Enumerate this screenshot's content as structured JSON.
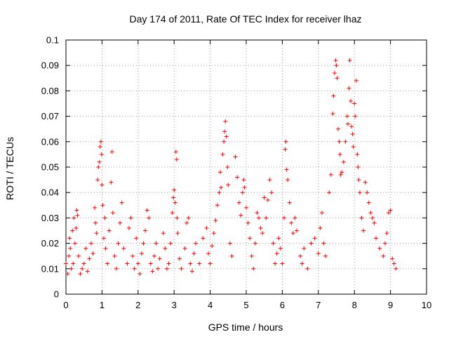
{
  "chart_data": {
    "type": "scatter",
    "title": "Day 174 of 2011, Rate Of TEC Index for receiver lhaz",
    "xlabel": "GPS time / hours",
    "ylabel": "ROTI / TECUs",
    "xlim": [
      0,
      10
    ],
    "ylim": [
      0,
      0.1
    ],
    "xticks": [
      0,
      1,
      2,
      3,
      4,
      5,
      6,
      7,
      8,
      9,
      10
    ],
    "xtick_labels": [
      "0",
      "1",
      "2",
      "3",
      "4",
      "5",
      "6",
      "7",
      "8",
      "9",
      "10"
    ],
    "yticks": [
      0,
      0.01,
      0.02,
      0.03,
      0.04,
      0.05,
      0.06,
      0.07,
      0.08,
      0.09,
      0.1
    ],
    "ytick_labels": [
      "0",
      "0.01",
      "0.02",
      "0.03",
      "0.04",
      "0.05",
      "0.06",
      "0.07",
      "0.08",
      "0.09",
      "0.1"
    ],
    "grid": true,
    "marker": "+",
    "color": "#ff0000",
    "series": [
      {
        "name": "ROTI",
        "points": [
          [
            0.0,
            0.012
          ],
          [
            0.05,
            0.008
          ],
          [
            0.08,
            0.015
          ],
          [
            0.1,
            0.022
          ],
          [
            0.12,
            0.018
          ],
          [
            0.15,
            0.01
          ],
          [
            0.18,
            0.025
          ],
          [
            0.2,
            0.012
          ],
          [
            0.22,
            0.03
          ],
          [
            0.25,
            0.02
          ],
          [
            0.28,
            0.026
          ],
          [
            0.3,
            0.033
          ],
          [
            0.32,
            0.031
          ],
          [
            0.35,
            0.015
          ],
          [
            0.4,
            0.008
          ],
          [
            0.45,
            0.01
          ],
          [
            0.5,
            0.012
          ],
          [
            0.55,
            0.018
          ],
          [
            0.6,
            0.009
          ],
          [
            0.65,
            0.014
          ],
          [
            0.7,
            0.02
          ],
          [
            0.75,
            0.016
          ],
          [
            0.8,
            0.034
          ],
          [
            0.82,
            0.028
          ],
          [
            0.85,
            0.024
          ],
          [
            0.88,
            0.045
          ],
          [
            0.9,
            0.05
          ],
          [
            0.93,
            0.052
          ],
          [
            0.95,
            0.058
          ],
          [
            0.97,
            0.06
          ],
          [
            0.99,
            0.055
          ],
          [
            1.0,
            0.043
          ],
          [
            1.02,
            0.035
          ],
          [
            1.05,
            0.022
          ],
          [
            1.08,
            0.03
          ],
          [
            1.1,
            0.018
          ],
          [
            1.15,
            0.012
          ],
          [
            1.2,
            0.025
          ],
          [
            1.25,
            0.044
          ],
          [
            1.28,
            0.056
          ],
          [
            1.3,
            0.032
          ],
          [
            1.35,
            0.015
          ],
          [
            1.4,
            0.01
          ],
          [
            1.45,
            0.02
          ],
          [
            1.5,
            0.028
          ],
          [
            1.55,
            0.036
          ],
          [
            1.6,
            0.018
          ],
          [
            1.7,
            0.012
          ],
          [
            1.75,
            0.026
          ],
          [
            1.8,
            0.03
          ],
          [
            1.85,
            0.015
          ],
          [
            1.9,
            0.01
          ],
          [
            1.95,
            0.022
          ],
          [
            2.0,
            0.012
          ],
          [
            2.05,
            0.008
          ],
          [
            2.1,
            0.016
          ],
          [
            2.15,
            0.02
          ],
          [
            2.2,
            0.025
          ],
          [
            2.25,
            0.033
          ],
          [
            2.3,
            0.03
          ],
          [
            2.35,
            0.012
          ],
          [
            2.4,
            0.009
          ],
          [
            2.45,
            0.015
          ],
          [
            2.5,
            0.02
          ],
          [
            2.55,
            0.01
          ],
          [
            2.6,
            0.014
          ],
          [
            2.7,
            0.024
          ],
          [
            2.75,
            0.018
          ],
          [
            2.8,
            0.01
          ],
          [
            2.85,
            0.012
          ],
          [
            2.9,
            0.02
          ],
          [
            2.95,
            0.032
          ],
          [
            2.98,
            0.038
          ],
          [
            3.0,
            0.041
          ],
          [
            3.03,
            0.036
          ],
          [
            3.05,
            0.056
          ],
          [
            3.07,
            0.053
          ],
          [
            3.08,
            0.03
          ],
          [
            3.1,
            0.024
          ],
          [
            3.15,
            0.014
          ],
          [
            3.2,
            0.01
          ],
          [
            3.3,
            0.018
          ],
          [
            3.35,
            0.028
          ],
          [
            3.4,
            0.03
          ],
          [
            3.45,
            0.012
          ],
          [
            3.5,
            0.009
          ],
          [
            3.55,
            0.016
          ],
          [
            3.6,
            0.02
          ],
          [
            3.7,
            0.012
          ],
          [
            3.8,
            0.022
          ],
          [
            3.9,
            0.026
          ],
          [
            3.95,
            0.016
          ],
          [
            4.0,
            0.012
          ],
          [
            4.05,
            0.019
          ],
          [
            4.1,
            0.024
          ],
          [
            4.15,
            0.029
          ],
          [
            4.2,
            0.035
          ],
          [
            4.25,
            0.04
          ],
          [
            4.28,
            0.048
          ],
          [
            4.3,
            0.042
          ],
          [
            4.35,
            0.055
          ],
          [
            4.38,
            0.06
          ],
          [
            4.4,
            0.064
          ],
          [
            4.42,
            0.068
          ],
          [
            4.45,
            0.062
          ],
          [
            4.48,
            0.05
          ],
          [
            4.5,
            0.043
          ],
          [
            4.55,
            0.02
          ],
          [
            4.6,
            0.015
          ],
          [
            4.7,
            0.054
          ],
          [
            4.75,
            0.046
          ],
          [
            4.8,
            0.036
          ],
          [
            4.85,
            0.031
          ],
          [
            4.9,
            0.04
          ],
          [
            4.93,
            0.045
          ],
          [
            4.95,
            0.042
          ],
          [
            5.0,
            0.034
          ],
          [
            5.05,
            0.028
          ],
          [
            5.1,
            0.022
          ],
          [
            5.15,
            0.015
          ],
          [
            5.2,
            0.01
          ],
          [
            5.25,
            0.02
          ],
          [
            5.3,
            0.032
          ],
          [
            5.35,
            0.03
          ],
          [
            5.4,
            0.026
          ],
          [
            5.45,
            0.024
          ],
          [
            5.5,
            0.038
          ],
          [
            5.55,
            0.03
          ],
          [
            5.6,
            0.037
          ],
          [
            5.65,
            0.045
          ],
          [
            5.7,
            0.04
          ],
          [
            5.75,
            0.02
          ],
          [
            5.8,
            0.012
          ],
          [
            5.85,
            0.016
          ],
          [
            5.9,
            0.022
          ],
          [
            5.95,
            0.018
          ],
          [
            6.0,
            0.012
          ],
          [
            6.05,
            0.03
          ],
          [
            6.08,
            0.057
          ],
          [
            6.1,
            0.06
          ],
          [
            6.12,
            0.049
          ],
          [
            6.15,
            0.045
          ],
          [
            6.2,
            0.036
          ],
          [
            6.25,
            0.028
          ],
          [
            6.3,
            0.024
          ],
          [
            6.35,
            0.03
          ],
          [
            6.4,
            0.025
          ],
          [
            6.5,
            0.015
          ],
          [
            6.55,
            0.012
          ],
          [
            6.6,
            0.018
          ],
          [
            6.7,
            0.01
          ],
          [
            6.8,
            0.02
          ],
          [
            6.9,
            0.022
          ],
          [
            7.0,
            0.016
          ],
          [
            7.05,
            0.026
          ],
          [
            7.1,
            0.032
          ],
          [
            7.15,
            0.02
          ],
          [
            7.2,
            0.015
          ],
          [
            7.3,
            0.04
          ],
          [
            7.35,
            0.047
          ],
          [
            7.4,
            0.071
          ],
          [
            7.42,
            0.078
          ],
          [
            7.45,
            0.087
          ],
          [
            7.48,
            0.092
          ],
          [
            7.5,
            0.09
          ],
          [
            7.52,
            0.085
          ],
          [
            7.55,
            0.065
          ],
          [
            7.58,
            0.06
          ],
          [
            7.6,
            0.055
          ],
          [
            7.62,
            0.047
          ],
          [
            7.65,
            0.048
          ],
          [
            7.7,
            0.052
          ],
          [
            7.75,
            0.06
          ],
          [
            7.8,
            0.07
          ],
          [
            7.82,
            0.067
          ],
          [
            7.85,
            0.081
          ],
          [
            7.87,
            0.092
          ],
          [
            7.9,
            0.076
          ],
          [
            7.92,
            0.066
          ],
          [
            7.95,
            0.063
          ],
          [
            7.97,
            0.058
          ],
          [
            8.0,
            0.075
          ],
          [
            8.02,
            0.07
          ],
          [
            8.05,
            0.084
          ],
          [
            8.08,
            0.055
          ],
          [
            8.1,
            0.05
          ],
          [
            8.12,
            0.045
          ],
          [
            8.15,
            0.04
          ],
          [
            8.2,
            0.03
          ],
          [
            8.25,
            0.025
          ],
          [
            8.3,
            0.044
          ],
          [
            8.35,
            0.04
          ],
          [
            8.4,
            0.036
          ],
          [
            8.45,
            0.032
          ],
          [
            8.5,
            0.03
          ],
          [
            8.55,
            0.028
          ],
          [
            8.6,
            0.022
          ],
          [
            8.7,
            0.018
          ],
          [
            8.8,
            0.015
          ],
          [
            8.85,
            0.02
          ],
          [
            8.9,
            0.024
          ],
          [
            8.95,
            0.032
          ],
          [
            9.0,
            0.033
          ],
          [
            9.05,
            0.014
          ],
          [
            9.1,
            0.012
          ],
          [
            9.15,
            0.01
          ]
        ]
      }
    ]
  }
}
